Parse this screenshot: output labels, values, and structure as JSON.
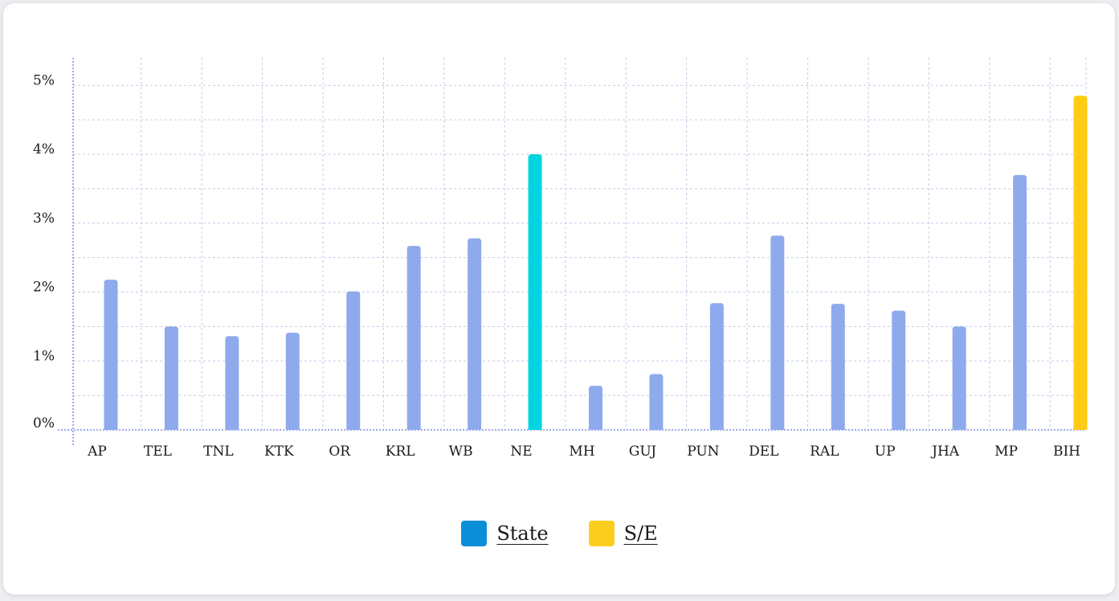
{
  "chart_data": {
    "type": "bar",
    "title": "",
    "xlabel": "",
    "ylabel": "",
    "categories": [
      "AP",
      "TEL",
      "TNL",
      "KTK",
      "OR",
      "KRL",
      "WB",
      "NE",
      "MH",
      "GUJ",
      "PUN",
      "DEL",
      "RAL",
      "UP",
      "JHA",
      "MP",
      "BIH"
    ],
    "values": [
      2.18,
      1.5,
      1.36,
      1.41,
      2.01,
      2.67,
      2.78,
      4.0,
      0.64,
      0.81,
      1.84,
      2.82,
      1.83,
      1.73,
      1.5,
      3.7,
      4.85
    ],
    "bar_colors": [
      "#8faaec",
      "#8faaec",
      "#8faaec",
      "#8faaec",
      "#8faaec",
      "#8faaec",
      "#8faaec",
      "#00d5e0",
      "#8faaec",
      "#8faaec",
      "#8faaec",
      "#8faaec",
      "#8faaec",
      "#8faaec",
      "#8faaec",
      "#8faaec",
      "#ffcb14"
    ],
    "ylim": [
      0,
      5
    ],
    "y_tick_values": [
      0,
      1,
      2,
      3,
      4,
      5
    ],
    "y_tick_labels": [
      "0%",
      "1%",
      "2%",
      "3%",
      "4%",
      "5%"
    ],
    "grid": true,
    "legend_position": "bottom-center",
    "legend": [
      {
        "label": "State",
        "color": "#0b8fd8"
      },
      {
        "label": "S/E",
        "color": "#fbcd1e"
      }
    ]
  }
}
